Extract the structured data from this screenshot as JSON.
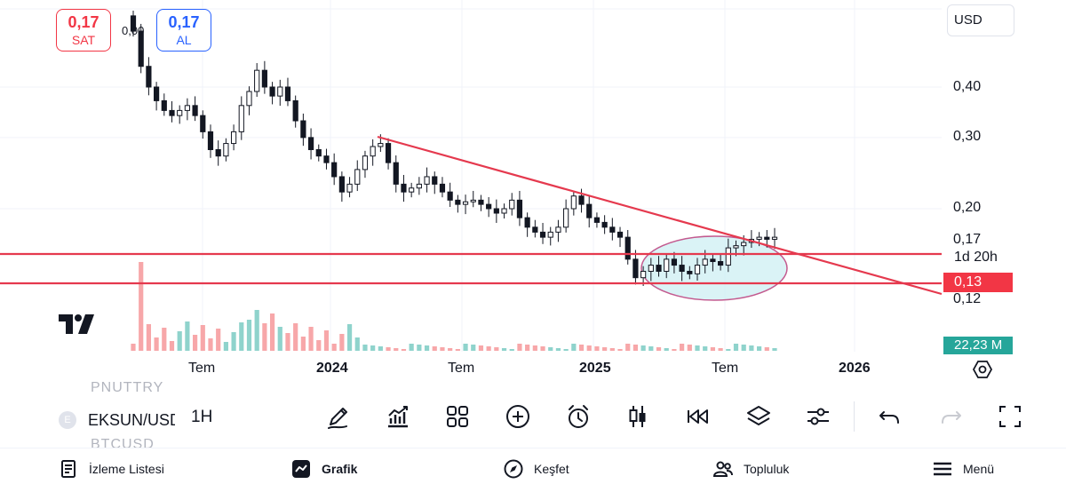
{
  "toolbar_top": {
    "sell": {
      "price": "0,17",
      "label": "SAT"
    },
    "buy": {
      "price": "0,17",
      "label": "AL"
    },
    "ohlc_value": "0,00",
    "currency": "USD"
  },
  "chart": {
    "price_axis": {
      "labels": [
        "0,40",
        "0,30",
        "0,20",
        "0,17",
        "0,12"
      ],
      "countdown": "1d 20h",
      "level_tag": "0,13",
      "volume_tag": "22,23 M"
    },
    "time_axis": {
      "labels": [
        "Tem",
        "2024",
        "Tem",
        "2025",
        "Tem",
        "2026"
      ]
    }
  },
  "chart_data": {
    "type": "candlestick",
    "y_scale": "log",
    "y_ticks": [
      0.12,
      0.13,
      0.17,
      0.2,
      0.3,
      0.4
    ],
    "x_ticks": [
      "Tem",
      "2024",
      "Tem",
      "2025",
      "Tem",
      "2026"
    ],
    "closes": [
      0.55,
      0.45,
      0.4,
      0.37,
      0.35,
      0.34,
      0.35,
      0.36,
      0.34,
      0.31,
      0.28,
      0.27,
      0.29,
      0.31,
      0.36,
      0.39,
      0.44,
      0.4,
      0.38,
      0.4,
      0.37,
      0.33,
      0.3,
      0.28,
      0.27,
      0.26,
      0.24,
      0.22,
      0.23,
      0.25,
      0.27,
      0.285,
      0.29,
      0.26,
      0.23,
      0.22,
      0.225,
      0.23,
      0.24,
      0.23,
      0.22,
      0.21,
      0.205,
      0.208,
      0.21,
      0.205,
      0.2,
      0.195,
      0.2,
      0.21,
      0.19,
      0.18,
      0.175,
      0.17,
      0.175,
      0.18,
      0.2,
      0.215,
      0.205,
      0.19,
      0.185,
      0.18,
      0.175,
      0.17,
      0.15,
      0.135,
      0.14,
      0.145,
      0.14,
      0.15,
      0.145,
      0.14,
      0.138,
      0.145,
      0.15,
      0.148,
      0.145,
      0.16,
      0.162,
      0.165,
      0.168,
      0.17,
      0.168,
      0.17
    ],
    "support_levels": [
      0.155,
      0.13
    ],
    "trendline": {
      "from_price": 0.3,
      "to_price": 0.12
    },
    "highlight": "ellipse"
  },
  "chart_colors": {
    "up": "#ffffff",
    "down": "#131722",
    "support_line": "#e5394e",
    "volume_down": "#f7a7a9",
    "volume_up": "#8fd3cc",
    "zone_fill": "#cdeff3",
    "zone_stroke": "#c35a8f"
  },
  "toolbar": {
    "symbol_above": "PNUTTRY",
    "symbol": "EKSUN/USD",
    "symbol_badge": "E",
    "symbol_below": "BTCUSD",
    "interval": "1H",
    "tools": [
      "pencil-icon",
      "indicators-icon",
      "templates-icon",
      "add-icon",
      "alert-clock-icon",
      "candles-icon",
      "replay-icon",
      "layers-icon",
      "settings-sliders-icon",
      "undo-icon",
      "redo-icon",
      "fullscreen-icon"
    ]
  },
  "bottom_nav": {
    "watchlist": "İzleme Listesi",
    "chart": "Grafik",
    "explore": "Keşfet",
    "community": "Topluluk",
    "menu": "Menü"
  }
}
